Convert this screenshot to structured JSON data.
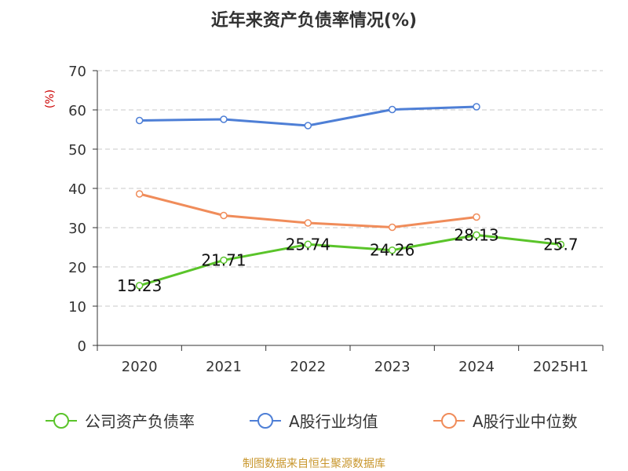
{
  "chart_data": {
    "type": "line",
    "title": "近年来资产负债率情况(%)",
    "ylabel": "(%)",
    "xlabel": "",
    "categories": [
      "2020",
      "2021",
      "2022",
      "2023",
      "2024",
      "2025H1"
    ],
    "yticks": [
      "0",
      "10",
      "20",
      "30",
      "40",
      "50",
      "60",
      "70"
    ],
    "ylim": [
      0,
      70
    ],
    "grid": true,
    "legend_position": "bottom",
    "series": [
      {
        "name": "公司资产负债率",
        "color": "#5ac42a",
        "values": [
          15.23,
          21.71,
          25.74,
          24.26,
          28.13,
          25.7
        ],
        "labels": [
          "15.23",
          "21.71",
          "25.74",
          "24.26",
          "28.13",
          "25.7"
        ]
      },
      {
        "name": "A股行业均值",
        "color": "#4e7fd6",
        "values": [
          57.3,
          57.6,
          56.0,
          60.1,
          60.8,
          null
        ]
      },
      {
        "name": "A股行业中位数",
        "color": "#f08c5a",
        "values": [
          38.6,
          33.1,
          31.2,
          30.1,
          32.7,
          null
        ]
      }
    ]
  },
  "source": "制图数据来自恒生聚源数据库"
}
